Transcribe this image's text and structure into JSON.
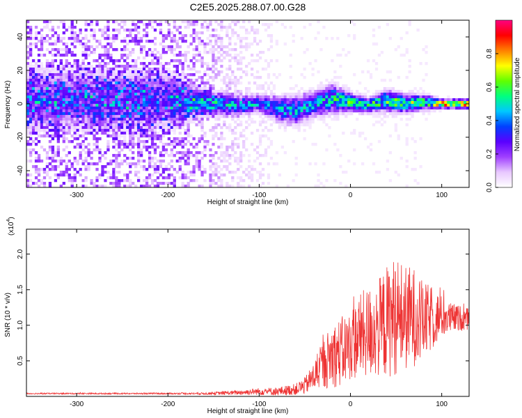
{
  "chart_data": [
    {
      "type": "heatmap",
      "title": "C2E5.2025.288.07.00.G28",
      "xlabel": "Height of straight line (km)",
      "ylabel": "Frequency (Hz)",
      "xlim": [
        -355,
        130
      ],
      "ylim": [
        -50,
        50
      ],
      "xticks": [
        -300,
        -200,
        -100,
        0,
        100
      ],
      "xtick_labels": [
        "-300",
        "-200",
        "-100",
        "0",
        "100"
      ],
      "yticks": [
        -40,
        -20,
        0,
        20,
        40
      ],
      "ytick_labels": [
        "-40",
        "-20",
        "0",
        "20",
        "40"
      ],
      "colorbar": {
        "label": "Normalized spectral amplitude",
        "range": [
          0.0,
          1.0
        ],
        "ticks": [
          0.0,
          0.2,
          0.4,
          0.6,
          0.8
        ],
        "tick_labels": [
          "0.0",
          "0.2",
          "0.4",
          "0.6",
          "0.8"
        ],
        "colors": [
          "#ffffff",
          "#e8c8ff",
          "#a040ff",
          "#5a00ff",
          "#0040ff",
          "#00c8ff",
          "#00ff80",
          "#60ff00",
          "#ffff00",
          "#ff8000",
          "#ff0000",
          "#ff0080"
        ]
      },
      "band_profile": {
        "x": [
          -355,
          -300,
          -250,
          -200,
          -165,
          -140,
          -120,
          -100,
          -80,
          -60,
          -40,
          -20,
          0,
          20,
          40,
          60,
          80,
          100,
          130
        ],
        "center_hz": [
          2,
          3,
          1,
          2,
          1,
          0,
          -1,
          0,
          -3,
          -4,
          0,
          3,
          1,
          -1,
          2,
          0,
          1,
          0,
          0
        ],
        "half_width_hz": [
          18,
          18,
          18,
          17,
          8,
          6,
          5,
          5,
          7,
          8,
          7,
          8,
          5,
          4,
          6,
          5,
          4,
          2.5,
          2.5
        ],
        "peak_amplitude": [
          0.28,
          0.26,
          0.27,
          0.25,
          0.42,
          0.45,
          0.44,
          0.4,
          0.43,
          0.45,
          0.47,
          0.5,
          0.6,
          0.55,
          0.58,
          0.6,
          0.65,
          0.85,
          0.9
        ],
        "noise_level": [
          0.12,
          0.12,
          0.12,
          0.12,
          0.1,
          0.06,
          0.05,
          0.04,
          0.02,
          0.02,
          0.02,
          0.02,
          0.02,
          0.02,
          0.02,
          0.02,
          0.02,
          0.01,
          0.01
        ]
      }
    },
    {
      "type": "line",
      "xlabel": "Height of straight line (km)",
      "ylabel": "SNR (10 * v/v)",
      "scale_label": "(x10",
      "scale_exponent": "4",
      "xlim": [
        -355,
        130
      ],
      "ylim": [
        0,
        2.35
      ],
      "xticks": [
        -300,
        -200,
        -100,
        0,
        100
      ],
      "xtick_labels": [
        "-300",
        "-200",
        "-100",
        "0",
        "100"
      ],
      "yticks": [
        0.5,
        1.0,
        1.5,
        2.0
      ],
      "ytick_labels": [
        "0.5",
        "1.0",
        "1.5",
        "2.0"
      ],
      "series": [
        {
          "name": "SNR",
          "color": "#ee3333",
          "envelope": {
            "x": [
              -355,
              -300,
              -200,
              -160,
              -130,
              -100,
              -80,
              -60,
              -50,
              -40,
              -30,
              -20,
              -10,
              0,
              10,
              20,
              30,
              40,
              50,
              60,
              70,
              80,
              90,
              100,
              110,
              120,
              130
            ],
            "mean": [
              0.04,
              0.04,
              0.04,
              0.04,
              0.05,
              0.07,
              0.07,
              0.1,
              0.15,
              0.28,
              0.45,
              0.58,
              0.62,
              0.72,
              0.85,
              0.9,
              0.95,
              1.05,
              1.15,
              1.1,
              1.12,
              1.05,
              1.1,
              1.12,
              1.1,
              1.1,
              1.08
            ],
            "spread": [
              0.01,
              0.01,
              0.01,
              0.015,
              0.03,
              0.05,
              0.06,
              0.08,
              0.12,
              0.2,
              0.35,
              0.45,
              0.5,
              0.5,
              0.6,
              0.65,
              0.7,
              0.8,
              0.85,
              0.75,
              0.7,
              0.55,
              0.45,
              0.3,
              0.22,
              0.18,
              0.15
            ]
          }
        }
      ]
    }
  ]
}
